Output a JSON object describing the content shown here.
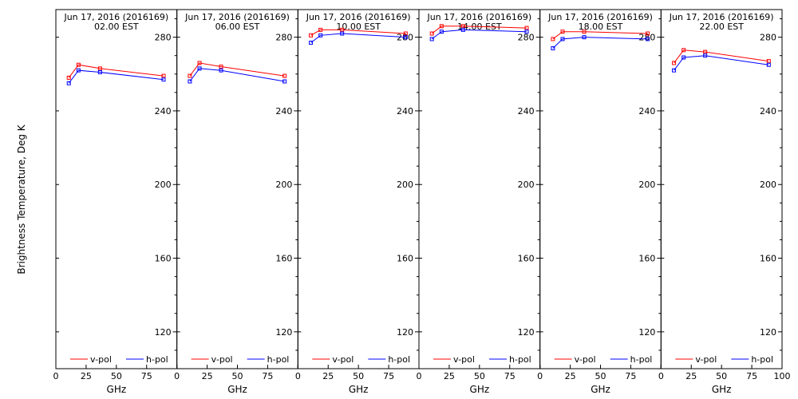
{
  "figure": {
    "ylabel": "Brightness Temperature, Deg K"
  },
  "chart_data": [
    {
      "type": "line",
      "title": "Jun 17, 2016 (2016169)",
      "subtitle": "02.00 EST",
      "xlabel": "GHz",
      "x": [
        10.7,
        18.7,
        36.5,
        89.0
      ],
      "xlim": [
        0,
        100
      ],
      "ylim": [
        100,
        295
      ],
      "yticks": [
        120,
        160,
        200,
        240,
        280
      ],
      "series": [
        {
          "name": "v-pol",
          "color": "#ff0000",
          "values": [
            258,
            265,
            263,
            259
          ]
        },
        {
          "name": "h-pol",
          "color": "#0000ff",
          "values": [
            255,
            262,
            261,
            257
          ]
        }
      ]
    },
    {
      "type": "line",
      "title": "Jun 17, 2016 (2016169)",
      "subtitle": "06.00 EST",
      "xlabel": "GHz",
      "x": [
        10.7,
        18.7,
        36.5,
        89.0
      ],
      "xlim": [
        0,
        100
      ],
      "ylim": [
        100,
        295
      ],
      "yticks": [
        120,
        160,
        200,
        240,
        280
      ],
      "series": [
        {
          "name": "v-pol",
          "color": "#ff0000",
          "values": [
            259,
            266,
            264,
            259
          ]
        },
        {
          "name": "h-pol",
          "color": "#0000ff",
          "values": [
            256,
            263,
            262,
            256
          ]
        }
      ]
    },
    {
      "type": "line",
      "title": "Jun 17, 2016 (2016169)",
      "subtitle": "10.00 EST",
      "xlabel": "GHz",
      "x": [
        10.7,
        18.7,
        36.5,
        89.0
      ],
      "xlim": [
        0,
        100
      ],
      "ylim": [
        100,
        295
      ],
      "yticks": [
        120,
        160,
        200,
        240,
        280
      ],
      "series": [
        {
          "name": "v-pol",
          "color": "#ff0000",
          "values": [
            281,
            284,
            284,
            282
          ]
        },
        {
          "name": "h-pol",
          "color": "#0000ff",
          "values": [
            277,
            281,
            282,
            280
          ]
        }
      ]
    },
    {
      "type": "line",
      "title": "Jun 17, 2016 (2016169)",
      "subtitle": "14.00 EST",
      "xlabel": "GHz",
      "x": [
        10.7,
        18.7,
        36.5,
        89.0
      ],
      "xlim": [
        0,
        100
      ],
      "ylim": [
        100,
        295
      ],
      "yticks": [
        120,
        160,
        200,
        240,
        280
      ],
      "series": [
        {
          "name": "v-pol",
          "color": "#ff0000",
          "values": [
            282,
            286,
            286,
            285
          ]
        },
        {
          "name": "h-pol",
          "color": "#0000ff",
          "values": [
            279,
            283,
            284,
            283
          ]
        }
      ]
    },
    {
      "type": "line",
      "title": "Jun 17, 2016 (2016169)",
      "subtitle": "18.00 EST",
      "xlabel": "GHz",
      "x": [
        10.7,
        18.7,
        36.5,
        89.0
      ],
      "xlim": [
        0,
        100
      ],
      "ylim": [
        100,
        295
      ],
      "yticks": [
        120,
        160,
        200,
        240,
        280
      ],
      "series": [
        {
          "name": "v-pol",
          "color": "#ff0000",
          "values": [
            279,
            283,
            283,
            282
          ]
        },
        {
          "name": "h-pol",
          "color": "#0000ff",
          "values": [
            274,
            279,
            280,
            279
          ]
        }
      ]
    },
    {
      "type": "line",
      "title": "Jun 17, 2016 (2016169)",
      "subtitle": "22.00 EST",
      "xlabel": "GHz",
      "x": [
        10.7,
        18.7,
        36.5,
        89.0
      ],
      "xlim": [
        0,
        100
      ],
      "ylim": [
        100,
        295
      ],
      "yticks": [
        120,
        160,
        200,
        240,
        280
      ],
      "series": [
        {
          "name": "v-pol",
          "color": "#ff0000",
          "values": [
            266,
            273,
            272,
            267
          ]
        },
        {
          "name": "h-pol",
          "color": "#0000ff",
          "values": [
            262,
            269,
            270,
            265
          ]
        }
      ]
    }
  ]
}
